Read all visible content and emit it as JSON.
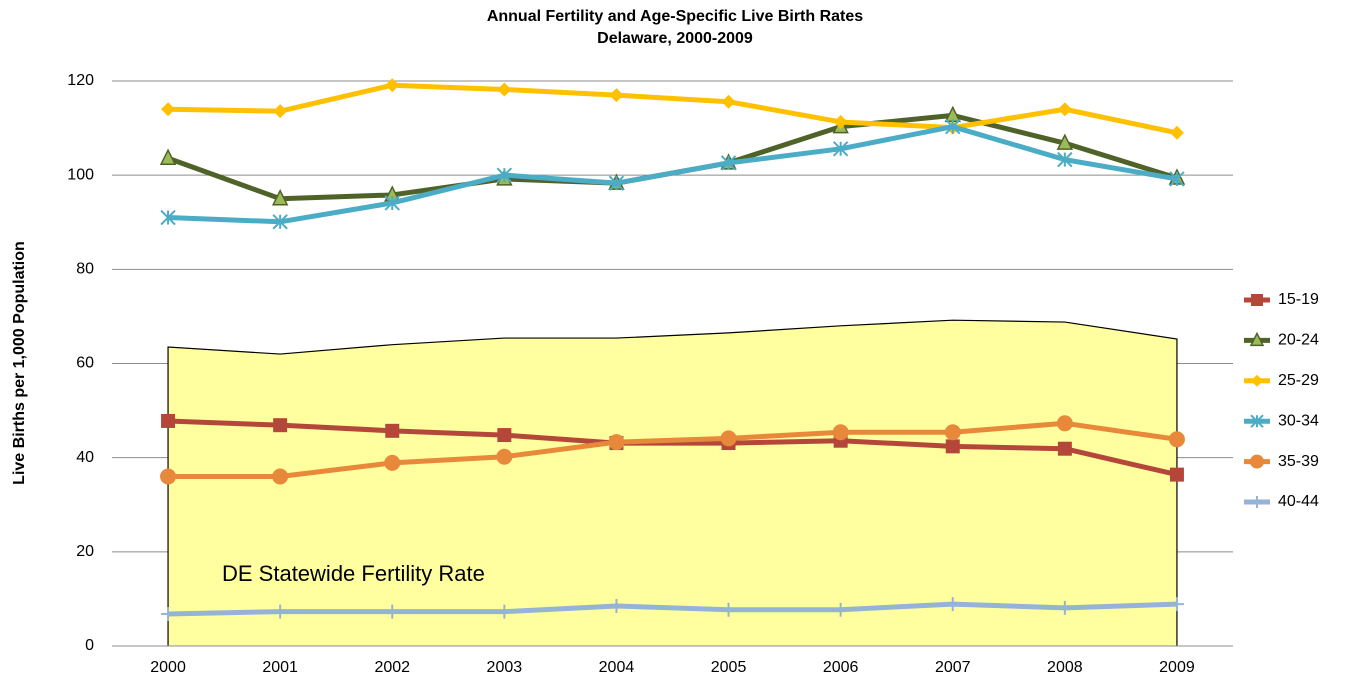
{
  "chart_data": {
    "type": "line",
    "title": "Annual Fertility and Age-Specific Live Birth Rates",
    "subtitle": "Delaware, 2000-2009",
    "y_label": "Live Births per 1,000 Population",
    "categories": [
      "2000",
      "2001",
      "2002",
      "2003",
      "2004",
      "2005",
      "2006",
      "2007",
      "2008",
      "2009"
    ],
    "area": {
      "name": "DE Statewide Fertility Rate",
      "color": "#ffff9f",
      "values": [
        63.5,
        62,
        64,
        65.4,
        65.4,
        66.5,
        68,
        69.2,
        68.8,
        65.2
      ]
    },
    "series": [
      {
        "name": "15-19",
        "color": "#b5473a",
        "marker": "square",
        "values": [
          47.8,
          46.9,
          45.7,
          44.8,
          43.1,
          43.1,
          43.6,
          42.4,
          41.9,
          36.4
        ]
      },
      {
        "name": "20-24",
        "color": "#4f6228",
        "marker": "triangle",
        "values": [
          103.6,
          95,
          95.8,
          99.2,
          98.3,
          102.6,
          110.3,
          112.7,
          106.8,
          99.4
        ]
      },
      {
        "name": "25-29",
        "color": "#ffc000",
        "marker": "diamond",
        "values": [
          114,
          113.6,
          119.1,
          118.2,
          117,
          115.6,
          111.3,
          110.1,
          114,
          109
        ]
      },
      {
        "name": "30-34",
        "color": "#4bacc6",
        "marker": "star",
        "values": [
          91,
          90.1,
          94.1,
          100,
          98.3,
          102.6,
          105.6,
          110.3,
          103.3,
          99.2
        ]
      },
      {
        "name": "35-39",
        "color": "#e8883a",
        "marker": "circle",
        "values": [
          36,
          36,
          38.9,
          40.2,
          43.3,
          44.1,
          45.4,
          45.4,
          47.3,
          43.9
        ]
      },
      {
        "name": "40-44",
        "color": "#95b3d7",
        "marker": "plus",
        "values": [
          6.8,
          7.3,
          7.3,
          7.3,
          8.5,
          7.7,
          7.7,
          8.9,
          8.1,
          8.9
        ]
      }
    ],
    "ylim": [
      0,
      120
    ],
    "yticks": [
      0,
      20,
      40,
      60,
      80,
      100,
      120
    ],
    "grid": true,
    "legend": "right"
  }
}
